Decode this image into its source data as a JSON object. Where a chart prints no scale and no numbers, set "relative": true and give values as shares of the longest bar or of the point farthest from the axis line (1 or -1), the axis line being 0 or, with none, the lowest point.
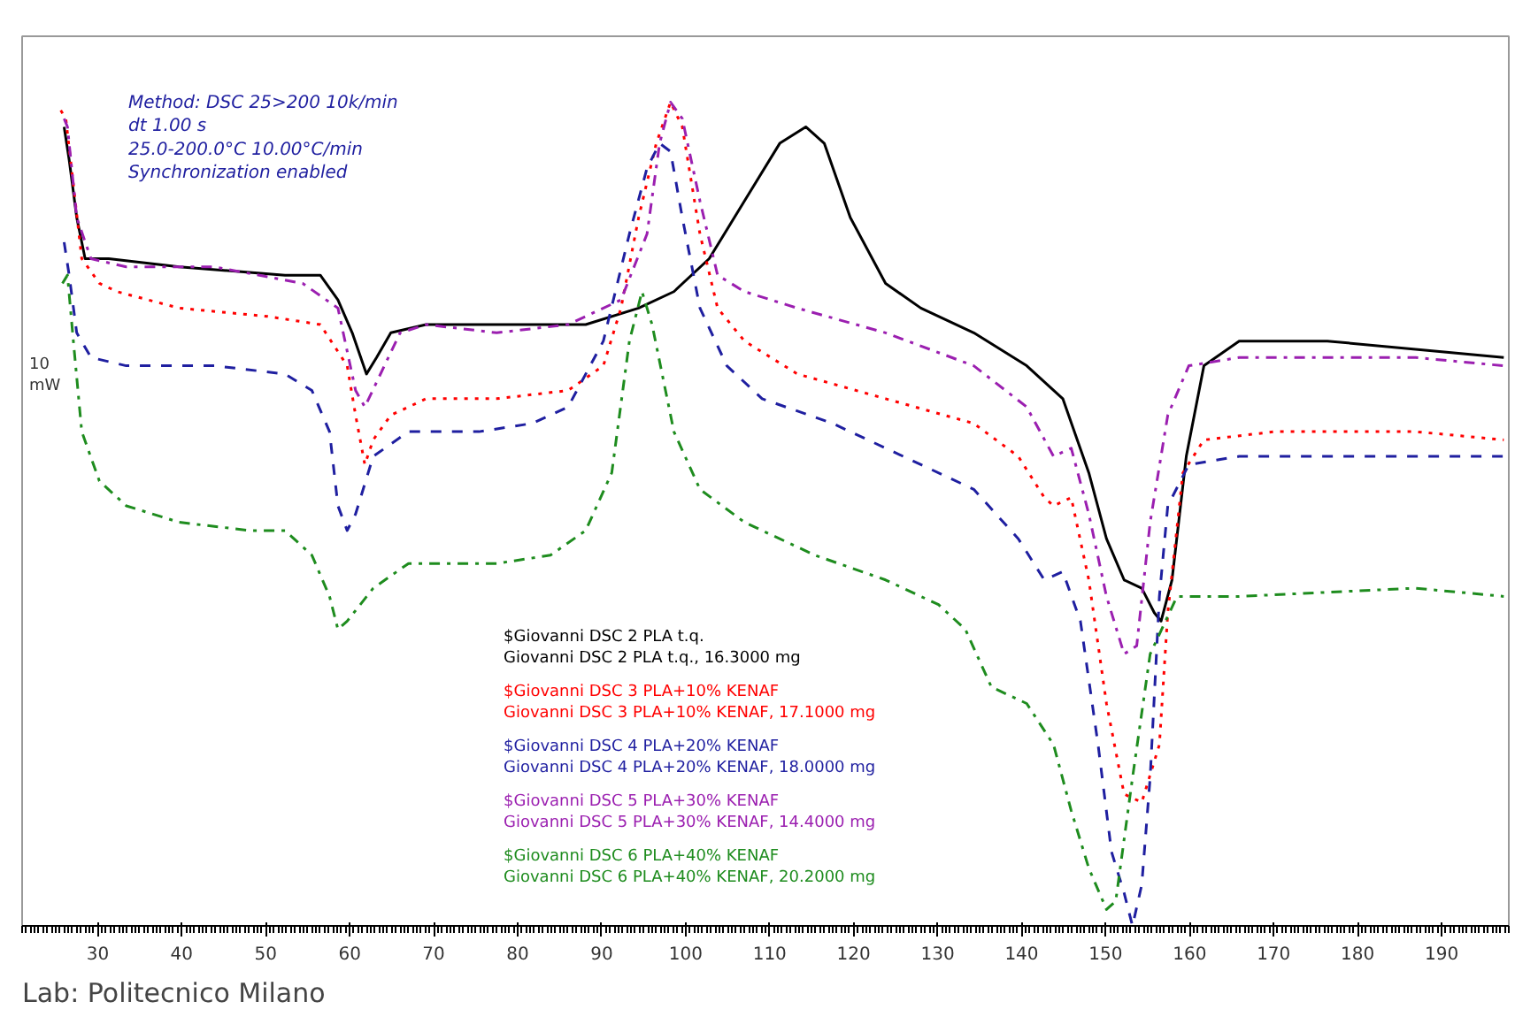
{
  "chart_data": {
    "type": "line",
    "relative": true,
    "ylabel": "10 mW",
    "legend": "bottom",
    "grid": false,
    "marker": "none",
    "xlim": [
      21,
      198
    ],
    "xticks": [
      30,
      40,
      50,
      60,
      70,
      80,
      90,
      100,
      110,
      120,
      130,
      140,
      150,
      160,
      170,
      180,
      190
    ],
    "annotations": [
      "Method: DSC 25>200 10k/min\ndt 1.00 s\n  25.0-200.0°C 10.00°C/min\nSynchronization enabled",
      "Lab: Politecnico Milano"
    ],
    "series": [
      {
        "name": "$Giovanni DSC 2 PLA t.q.\nGiovanni DSC 2 PLA t.q., 16.3000 mg",
        "color": "#000000",
        "line_style": "solid",
        "x": [
          26.0,
          26.6,
          27.5,
          28.5,
          31.3,
          39.7,
          52.3,
          56.5,
          58.6,
          60.3,
          62.0,
          63.2,
          64.9,
          69.1,
          77.5,
          81.7,
          88.1,
          94.4,
          98.6,
          102.8,
          107.0,
          111.2,
          114.3,
          116.5,
          119.6,
          123.8,
          128.0,
          134.3,
          140.6,
          144.9,
          148.0,
          150.1,
          152.2,
          154.3,
          155.8,
          156.6,
          157.9,
          159.6,
          161.7,
          165.9,
          176.4,
          186.9,
          197.4
        ],
        "values": [
          0.97,
          0.93,
          0.86,
          0.81,
          0.81,
          0.8,
          0.79,
          0.79,
          0.76,
          0.72,
          0.67,
          0.69,
          0.72,
          0.73,
          0.73,
          0.73,
          0.73,
          0.75,
          0.77,
          0.81,
          0.88,
          0.95,
          0.97,
          0.95,
          0.86,
          0.78,
          0.75,
          0.72,
          0.68,
          0.64,
          0.55,
          0.47,
          0.42,
          0.41,
          0.38,
          0.37,
          0.42,
          0.57,
          0.68,
          0.71,
          0.71,
          0.7,
          0.69
        ]
      },
      {
        "name": "$Giovanni DSC 3 PLA+10% KENAF\nGiovanni DSC 3 PLA+10% KENAF, 17.1000 mg",
        "color": "#ff0000",
        "line_style": "dotted",
        "x": [
          25.6,
          26.2,
          27.1,
          28.1,
          30.2,
          32.3,
          39.7,
          50.2,
          56.5,
          59.7,
          60.7,
          61.8,
          62.8,
          64.9,
          69.1,
          77.5,
          86.0,
          90.2,
          92.3,
          94.4,
          96.5,
          98.2,
          99.6,
          101.7,
          103.8,
          107.0,
          113.3,
          123.8,
          134.3,
          139.6,
          142.7,
          143.8,
          145.9,
          148.0,
          150.1,
          152.2,
          154.3,
          156.4,
          157.4,
          159.2,
          161.7,
          170.1,
          186.9,
          197.4
        ],
        "values": [
          0.99,
          0.98,
          0.9,
          0.81,
          0.78,
          0.77,
          0.75,
          0.74,
          0.73,
          0.68,
          0.62,
          0.56,
          0.59,
          0.62,
          0.64,
          0.64,
          0.65,
          0.68,
          0.75,
          0.86,
          0.95,
          1.0,
          0.97,
          0.84,
          0.75,
          0.71,
          0.67,
          0.64,
          0.61,
          0.57,
          0.52,
          0.51,
          0.52,
          0.42,
          0.27,
          0.16,
          0.15,
          0.22,
          0.38,
          0.55,
          0.59,
          0.6,
          0.6,
          0.59
        ]
      },
      {
        "name": "$Giovanni DSC 4 PLA+20% KENAF\nGiovanni DSC 4 PLA+20% KENAF, 18.0000 mg",
        "color": "#1f1fa0",
        "line_style": "dashed",
        "x": [
          26.0,
          26.6,
          27.5,
          29.2,
          33.4,
          43.9,
          52.3,
          55.5,
          57.6,
          58.6,
          59.7,
          60.7,
          62.8,
          67.0,
          75.4,
          81.7,
          86.0,
          90.2,
          93.3,
          95.4,
          96.9,
          98.2,
          99.6,
          101.7,
          104.9,
          109.1,
          117.5,
          125.9,
          134.3,
          139.6,
          142.7,
          144.9,
          147.0,
          149.1,
          150.7,
          152.2,
          153.2,
          154.3,
          155.3,
          156.4,
          157.4,
          159.9,
          165.9,
          186.9,
          197.4
        ],
        "values": [
          0.83,
          0.79,
          0.72,
          0.69,
          0.68,
          0.68,
          0.67,
          0.65,
          0.6,
          0.51,
          0.48,
          0.5,
          0.57,
          0.6,
          0.6,
          0.61,
          0.63,
          0.71,
          0.84,
          0.92,
          0.95,
          0.94,
          0.86,
          0.75,
          0.68,
          0.64,
          0.61,
          0.57,
          0.53,
          0.47,
          0.42,
          0.43,
          0.37,
          0.22,
          0.09,
          0.04,
          0.0,
          0.05,
          0.18,
          0.4,
          0.51,
          0.56,
          0.57,
          0.57,
          0.57
        ]
      },
      {
        "name": "$Giovanni DSC 5 PLA+30% KENAF\nGiovanni DSC 5 PLA+30% KENAF, 14.4000 mg",
        "color": "#9b1fb0",
        "line_style": "dashdot",
        "x": [
          26.0,
          26.4,
          27.5,
          29.2,
          33.4,
          43.9,
          54.4,
          58.6,
          60.7,
          61.8,
          63.2,
          66.0,
          69.1,
          77.5,
          86.0,
          92.3,
          95.4,
          96.9,
          98.2,
          99.6,
          101.7,
          103.8,
          107.0,
          113.3,
          123.8,
          134.3,
          140.6,
          143.8,
          145.9,
          148.0,
          150.1,
          152.2,
          153.7,
          155.3,
          157.4,
          159.9,
          165.9,
          186.9,
          197.4
        ],
        "values": [
          0.98,
          0.97,
          0.86,
          0.81,
          0.8,
          0.8,
          0.78,
          0.75,
          0.65,
          0.63,
          0.66,
          0.72,
          0.73,
          0.72,
          0.73,
          0.76,
          0.84,
          0.95,
          1.0,
          0.98,
          0.88,
          0.79,
          0.77,
          0.75,
          0.72,
          0.68,
          0.63,
          0.57,
          0.58,
          0.5,
          0.4,
          0.33,
          0.34,
          0.49,
          0.62,
          0.68,
          0.69,
          0.69,
          0.68
        ]
      },
      {
        "name": "$Giovanni DSC 6 PLA+40% KENAF\nGiovanni DSC 6 PLA+40% KENAF, 20.2000 mg",
        "color": "#1e8c1e",
        "line_style": "dashdot",
        "x": [
          25.8,
          26.4,
          27.1,
          28.1,
          30.2,
          33.4,
          39.7,
          48.1,
          52.3,
          55.5,
          57.6,
          58.6,
          59.7,
          62.8,
          67.0,
          77.5,
          83.9,
          88.1,
          91.2,
          93.3,
          94.8,
          96.0,
          98.6,
          101.7,
          107.0,
          115.4,
          123.8,
          130.1,
          133.3,
          136.4,
          140.6,
          143.8,
          145.9,
          148.0,
          150.1,
          151.2,
          153.2,
          155.3,
          158.5,
          165.9,
          186.9,
          197.4
        ],
        "values": [
          0.78,
          0.79,
          0.71,
          0.6,
          0.54,
          0.51,
          0.49,
          0.48,
          0.48,
          0.45,
          0.4,
          0.36,
          0.37,
          0.41,
          0.44,
          0.44,
          0.45,
          0.48,
          0.55,
          0.71,
          0.77,
          0.73,
          0.6,
          0.53,
          0.49,
          0.45,
          0.42,
          0.39,
          0.36,
          0.29,
          0.27,
          0.22,
          0.14,
          0.07,
          0.02,
          0.03,
          0.18,
          0.33,
          0.4,
          0.4,
          0.41,
          0.4
        ]
      }
    ]
  }
}
